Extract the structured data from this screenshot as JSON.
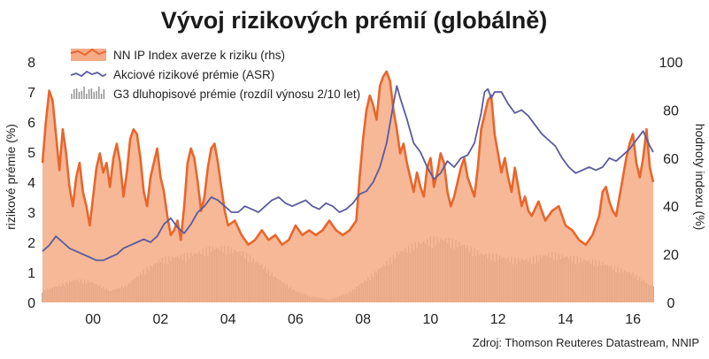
{
  "chart_data": {
    "type": "line",
    "title": "Vývoj rizikových prémií (globálně)",
    "ylabel_left": "rizikové prémie (%)",
    "ylabel_right": "hodnoty indexu (%)",
    "ylim_left": [
      0,
      8
    ],
    "ylim_right": [
      0,
      100
    ],
    "xlim": [
      1998.5,
      2016.6
    ],
    "left_ticks": [
      0,
      1,
      2,
      3,
      4,
      5,
      6,
      7,
      8
    ],
    "right_ticks": [
      0,
      20,
      40,
      60,
      80,
      100
    ],
    "x_ticks": [
      {
        "value": 2000,
        "label": "00"
      },
      {
        "value": 2002,
        "label": "02"
      },
      {
        "value": 2004,
        "label": "04"
      },
      {
        "value": 2006,
        "label": "06"
      },
      {
        "value": 2008,
        "label": "08"
      },
      {
        "value": 2010,
        "label": "10"
      },
      {
        "value": 2012,
        "label": "12"
      },
      {
        "value": 2014,
        "label": "14"
      },
      {
        "value": 2016,
        "label": "16"
      }
    ],
    "grid": false,
    "legend_position": "top-left",
    "source": "Zdroj: Thomson Reuteres Datastream, NNIP",
    "series": [
      {
        "name": "NN IP Index averze k riziku (rhs)",
        "kind": "area",
        "axis": "right",
        "color": "#e8662c",
        "fill": "#f5ab85",
        "x": [
          1998.5,
          1998.6,
          1998.7,
          1998.8,
          1998.9,
          1999.0,
          1999.1,
          1999.2,
          1999.3,
          1999.4,
          1999.5,
          1999.6,
          1999.7,
          1999.8,
          1999.9,
          2000.0,
          2000.1,
          2000.2,
          2000.3,
          2000.4,
          2000.5,
          2000.6,
          2000.7,
          2000.8,
          2000.9,
          2001.0,
          2001.1,
          2001.2,
          2001.3,
          2001.4,
          2001.5,
          2001.6,
          2001.7,
          2001.8,
          2001.9,
          2002.0,
          2002.1,
          2002.2,
          2002.3,
          2002.4,
          2002.5,
          2002.6,
          2002.7,
          2002.8,
          2002.9,
          2003.0,
          2003.1,
          2003.2,
          2003.3,
          2003.4,
          2003.5,
          2003.6,
          2003.7,
          2003.8,
          2003.9,
          2004.0,
          2004.2,
          2004.4,
          2004.6,
          2004.8,
          2005.0,
          2005.2,
          2005.4,
          2005.6,
          2005.8,
          2006.0,
          2006.2,
          2006.4,
          2006.6,
          2006.8,
          2007.0,
          2007.2,
          2007.4,
          2007.6,
          2007.8,
          2007.9,
          2008.0,
          2008.1,
          2008.2,
          2008.3,
          2008.4,
          2008.5,
          2008.6,
          2008.7,
          2008.8,
          2008.9,
          2009.0,
          2009.1,
          2009.2,
          2009.3,
          2009.4,
          2009.5,
          2009.6,
          2009.7,
          2009.8,
          2009.9,
          2010.0,
          2010.1,
          2010.2,
          2010.3,
          2010.4,
          2010.5,
          2010.6,
          2010.7,
          2010.8,
          2010.9,
          2011.0,
          2011.1,
          2011.2,
          2011.3,
          2011.4,
          2011.5,
          2011.6,
          2011.7,
          2011.8,
          2011.9,
          2012.0,
          2012.1,
          2012.2,
          2012.3,
          2012.4,
          2012.5,
          2012.6,
          2012.7,
          2012.8,
          2012.9,
          2013.0,
          2013.2,
          2013.4,
          2013.6,
          2013.8,
          2014.0,
          2014.2,
          2014.4,
          2014.6,
          2014.8,
          2015.0,
          2015.1,
          2015.2,
          2015.3,
          2015.4,
          2015.5,
          2015.6,
          2015.7,
          2015.8,
          2015.9,
          2016.0,
          2016.1,
          2016.2,
          2016.3,
          2016.4,
          2016.5,
          2016.6
        ],
        "y": [
          58,
          75,
          88,
          84,
          70,
          55,
          72,
          62,
          48,
          40,
          52,
          58,
          46,
          40,
          32,
          44,
          56,
          62,
          54,
          58,
          48,
          60,
          66,
          58,
          44,
          54,
          68,
          72,
          70,
          60,
          46,
          40,
          52,
          58,
          64,
          52,
          46,
          36,
          28,
          30,
          34,
          26,
          40,
          58,
          64,
          60,
          50,
          38,
          44,
          56,
          64,
          66,
          58,
          48,
          38,
          32,
          34,
          28,
          24,
          26,
          30,
          26,
          28,
          24,
          26,
          32,
          28,
          30,
          28,
          30,
          34,
          30,
          28,
          30,
          34,
          52,
          68,
          80,
          86,
          82,
          76,
          90,
          94,
          96,
          92,
          80,
          72,
          62,
          66,
          58,
          52,
          46,
          54,
          48,
          44,
          56,
          60,
          48,
          54,
          62,
          58,
          46,
          40,
          44,
          50,
          56,
          60,
          52,
          48,
          44,
          56,
          72,
          78,
          84,
          86,
          70,
          62,
          54,
          60,
          52,
          46,
          56,
          48,
          40,
          44,
          38,
          36,
          42,
          34,
          38,
          40,
          32,
          30,
          26,
          24,
          28,
          36,
          46,
          48,
          42,
          38,
          36,
          44,
          52,
          60,
          66,
          70,
          58,
          52,
          60,
          72,
          56,
          50
        ],
        "values": [
          58,
          75,
          88,
          84,
          70,
          55,
          72,
          62,
          48,
          40,
          52,
          58,
          46,
          40,
          32,
          44,
          56,
          62,
          54,
          58,
          48,
          60,
          66,
          58,
          44,
          54,
          68,
          72,
          70,
          60,
          46,
          40,
          52,
          58,
          64,
          52,
          46,
          36,
          28,
          30,
          34,
          26,
          40,
          58,
          64,
          60,
          50,
          38,
          44,
          56,
          64,
          66,
          58,
          48,
          38,
          32,
          34,
          28,
          24,
          26,
          30,
          26,
          28,
          24,
          26,
          32,
          28,
          30,
          28,
          30,
          34,
          30,
          28,
          30,
          34,
          52,
          68,
          80,
          86,
          82,
          76,
          90,
          94,
          96,
          92,
          80,
          72,
          62,
          66,
          58,
          52,
          46,
          54,
          48,
          44,
          56,
          60,
          48,
          54,
          62,
          58,
          46,
          40,
          44,
          50,
          56,
          60,
          52,
          48,
          44,
          56,
          72,
          78,
          84,
          86,
          70,
          62,
          54,
          60,
          52,
          46,
          56,
          48,
          40,
          44,
          38,
          36,
          42,
          34,
          38,
          40,
          32,
          30,
          26,
          24,
          28,
          36,
          46,
          48,
          42,
          38,
          36,
          44,
          52,
          60,
          66,
          70,
          58,
          52,
          60,
          72,
          56,
          50
        ]
      },
      {
        "name": "Akciové rizikové prémie (ASR)",
        "kind": "line",
        "axis": "left",
        "color": "#5b5b9e",
        "x": [
          1998.5,
          1998.7,
          1998.9,
          1999.1,
          1999.3,
          1999.5,
          1999.7,
          1999.9,
          2000.1,
          2000.3,
          2000.5,
          2000.7,
          2000.9,
          2001.1,
          2001.3,
          2001.5,
          2001.7,
          2001.9,
          2002.1,
          2002.3,
          2002.5,
          2002.7,
          2002.9,
          2003.1,
          2003.3,
          2003.5,
          2003.7,
          2003.9,
          2004.1,
          2004.3,
          2004.5,
          2004.7,
          2004.9,
          2005.1,
          2005.3,
          2005.5,
          2005.7,
          2005.9,
          2006.1,
          2006.3,
          2006.5,
          2006.7,
          2006.9,
          2007.1,
          2007.3,
          2007.5,
          2007.7,
          2007.9,
          2008.1,
          2008.3,
          2008.5,
          2008.7,
          2008.9,
          2009.0,
          2009.1,
          2009.3,
          2009.5,
          2009.7,
          2009.9,
          2010.1,
          2010.3,
          2010.5,
          2010.7,
          2010.9,
          2011.1,
          2011.3,
          2011.5,
          2011.6,
          2011.7,
          2011.8,
          2011.9,
          2012.1,
          2012.3,
          2012.5,
          2012.7,
          2012.9,
          2013.1,
          2013.3,
          2013.5,
          2013.7,
          2013.9,
          2014.1,
          2014.3,
          2014.5,
          2014.7,
          2014.9,
          2015.1,
          2015.3,
          2015.5,
          2015.7,
          2015.9,
          2016.1,
          2016.3,
          2016.5,
          2016.6
        ],
        "y": [
          1.7,
          1.9,
          2.2,
          2.0,
          1.8,
          1.7,
          1.6,
          1.5,
          1.4,
          1.4,
          1.5,
          1.6,
          1.8,
          1.9,
          2.0,
          2.1,
          2.0,
          2.2,
          2.6,
          2.8,
          2.5,
          2.3,
          2.6,
          3.0,
          3.2,
          3.5,
          3.4,
          3.2,
          3.0,
          3.0,
          3.2,
          3.1,
          3.0,
          3.2,
          3.4,
          3.5,
          3.3,
          3.2,
          3.3,
          3.4,
          3.2,
          3.1,
          3.3,
          3.2,
          3.0,
          3.1,
          3.3,
          3.6,
          3.7,
          4.0,
          4.5,
          5.3,
          6.6,
          7.2,
          6.8,
          6.1,
          5.3,
          5.0,
          4.5,
          4.1,
          4.3,
          4.7,
          4.5,
          4.8,
          4.9,
          5.3,
          6.3,
          7.0,
          7.1,
          6.8,
          7.0,
          7.0,
          6.6,
          6.3,
          6.4,
          6.2,
          5.9,
          5.6,
          5.4,
          5.2,
          4.8,
          4.5,
          4.3,
          4.4,
          4.5,
          4.4,
          4.5,
          4.8,
          4.7,
          4.9,
          5.1,
          5.4,
          5.7,
          5.2,
          5.0
        ],
        "values": [
          1.7,
          1.9,
          2.2,
          2.0,
          1.8,
          1.7,
          1.6,
          1.5,
          1.4,
          1.4,
          1.5,
          1.6,
          1.8,
          1.9,
          2.0,
          2.1,
          2.0,
          2.2,
          2.6,
          2.8,
          2.5,
          2.3,
          2.6,
          3.0,
          3.2,
          3.5,
          3.4,
          3.2,
          3.0,
          3.0,
          3.2,
          3.1,
          3.0,
          3.2,
          3.4,
          3.5,
          3.3,
          3.2,
          3.3,
          3.4,
          3.2,
          3.1,
          3.3,
          3.2,
          3.0,
          3.1,
          3.3,
          3.6,
          3.7,
          4.0,
          4.5,
          5.3,
          6.6,
          7.2,
          6.8,
          6.1,
          5.3,
          5.0,
          4.5,
          4.1,
          4.3,
          4.7,
          4.5,
          4.8,
          4.9,
          5.3,
          6.3,
          7.0,
          7.1,
          6.8,
          7.0,
          7.0,
          6.6,
          6.3,
          6.4,
          6.2,
          5.9,
          5.6,
          5.4,
          5.2,
          4.8,
          4.5,
          4.3,
          4.4,
          4.5,
          4.4,
          4.5,
          4.8,
          4.7,
          4.9,
          5.1,
          5.4,
          5.7,
          5.2,
          5.0
        ]
      },
      {
        "name": "G3 dluhopisové prémie (rozdíl výnosu 2/10 let)",
        "kind": "bar",
        "axis": "left",
        "color": "#8a8a8a",
        "x": [
          1998.5,
          1999.0,
          1999.5,
          2000.0,
          2000.5,
          2001.0,
          2001.5,
          2002.0,
          2002.5,
          2003.0,
          2003.5,
          2004.0,
          2004.5,
          2005.0,
          2005.5,
          2006.0,
          2006.5,
          2007.0,
          2007.5,
          2008.0,
          2008.5,
          2009.0,
          2009.5,
          2010.0,
          2010.5,
          2011.0,
          2011.5,
          2012.0,
          2012.5,
          2013.0,
          2013.5,
          2014.0,
          2014.5,
          2015.0,
          2015.5,
          2016.0,
          2016.5
        ],
        "y": [
          0.4,
          0.6,
          0.8,
          0.7,
          0.4,
          0.6,
          1.1,
          1.5,
          1.6,
          1.7,
          1.9,
          1.9,
          1.7,
          1.3,
          0.8,
          0.4,
          0.2,
          0.1,
          0.3,
          0.7,
          1.2,
          1.7,
          2.0,
          2.2,
          2.2,
          2.0,
          1.7,
          1.6,
          1.5,
          1.5,
          1.7,
          1.6,
          1.5,
          1.4,
          1.2,
          1.0,
          0.6
        ],
        "values": [
          0.4,
          0.6,
          0.8,
          0.7,
          0.4,
          0.6,
          1.1,
          1.5,
          1.6,
          1.7,
          1.9,
          1.9,
          1.7,
          1.3,
          0.8,
          0.4,
          0.2,
          0.1,
          0.3,
          0.7,
          1.2,
          1.7,
          2.0,
          2.2,
          2.2,
          2.0,
          1.7,
          1.6,
          1.5,
          1.5,
          1.7,
          1.6,
          1.5,
          1.4,
          1.2,
          1.0,
          0.6
        ]
      }
    ]
  }
}
